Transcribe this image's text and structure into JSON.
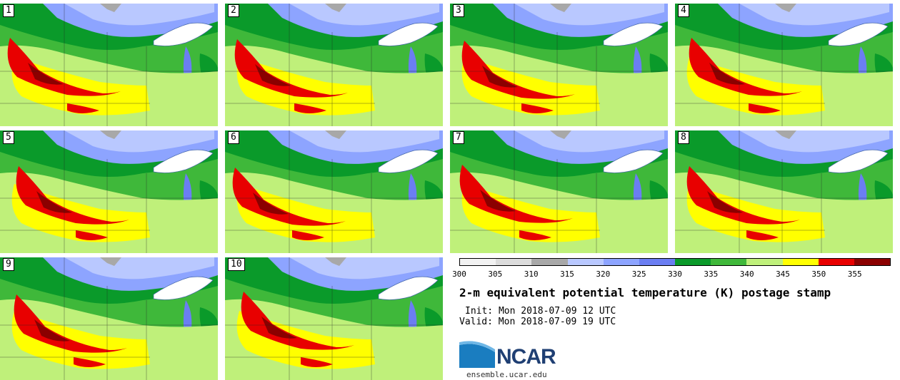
{
  "panels": [
    {
      "label": "1"
    },
    {
      "label": "2"
    },
    {
      "label": "3"
    },
    {
      "label": "4"
    },
    {
      "label": "5"
    },
    {
      "label": "6"
    },
    {
      "label": "7"
    },
    {
      "label": "8"
    },
    {
      "label": "9"
    },
    {
      "label": "10"
    }
  ],
  "colorbar": {
    "ticks": [
      "300",
      "305",
      "310",
      "315",
      "320",
      "325",
      "330",
      "335",
      "340",
      "345",
      "350",
      "355"
    ],
    "colors": [
      "#f2f2f2",
      "#dcdcdc",
      "#a8a8a8",
      "#b9c8ff",
      "#8da4ff",
      "#6b7ef2",
      "#0a9a2a",
      "#3fb83a",
      "#bff07a",
      "#ffff00",
      "#e80000",
      "#8b0000"
    ]
  },
  "title": "2-m equivalent potential temperature (K) postage stamp",
  "init": "Init: Mon 2018-07-09 12 UTC",
  "valid": "Valid: Mon 2018-07-09 19 UTC",
  "logo": {
    "text": "NCAR",
    "url": "ensemble.ucar.edu"
  }
}
